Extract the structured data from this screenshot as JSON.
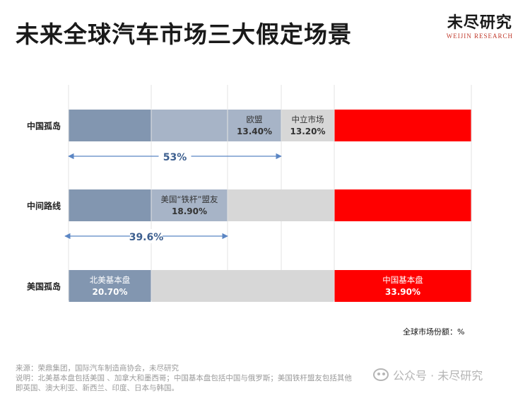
{
  "title": "未来全球汽车市场三大假定场景",
  "brand": {
    "name": "未尽研究",
    "sub": "WEIJIN RESEARCH"
  },
  "unit_label": "全球市场份额：%",
  "notes": {
    "source": "来源：荣鼎集团，国际汽车制造商协会，未尽研究",
    "line1": "说明：北美基本盘包括美国 、加拿大和墨西哥；中国基本盘包括中国与俄罗斯；美国铁杆盟友包括其他",
    "line2": "即英国、澳大利亚、新西兰、印度、日本与韩国。"
  },
  "watermark": {
    "text": "公众号 · 未尽研究"
  },
  "colors": {
    "us_block": "#8296b0",
    "ally_block": "#a7b4c7",
    "eu_block": "#a7b4c7",
    "neutral_block": "#d7d7d7",
    "china_block": "#ff0000",
    "arrow": "#5b86c4"
  },
  "chart_data": {
    "type": "bar",
    "orientation": "horizontal-stacked",
    "categories": [
      "中国孤岛",
      "中间路线",
      "美国孤岛"
    ],
    "rows": [
      {
        "category": "中国孤岛",
        "segments": [
          {
            "color_key": "us_block",
            "label": "",
            "value": ""
          },
          {
            "color_key": "ally_block",
            "label": "",
            "value": ""
          },
          {
            "color_key": "eu_block",
            "label": "欧盟",
            "value": "13.40%"
          },
          {
            "color_key": "neutral_block",
            "label": "中立市场",
            "value": "13.20%"
          },
          {
            "color_key": "china_block",
            "label": "",
            "value": ""
          }
        ],
        "annotation": {
          "text": "53%",
          "value": 53
        }
      },
      {
        "category": "中间路线",
        "segments": [
          {
            "color_key": "us_block",
            "label": "",
            "value": ""
          },
          {
            "color_key": "ally_block",
            "label": "美国“铁杆”盟友",
            "value": "18.90%"
          },
          {
            "color_key": "neutral_block",
            "label": "",
            "value": ""
          },
          {
            "color_key": "china_block",
            "label": "",
            "value": ""
          }
        ],
        "annotation": {
          "text": "39.6%",
          "value": 39.6
        }
      },
      {
        "category": "美国孤岛",
        "segments": [
          {
            "color_key": "us_block",
            "label": "北美基本盘",
            "value": "20.70%"
          },
          {
            "color_key": "neutral_block",
            "label": "",
            "value": ""
          },
          {
            "color_key": "china_block",
            "label": "中国基本盘",
            "value": "33.90%"
          }
        ]
      }
    ],
    "grid": true
  }
}
